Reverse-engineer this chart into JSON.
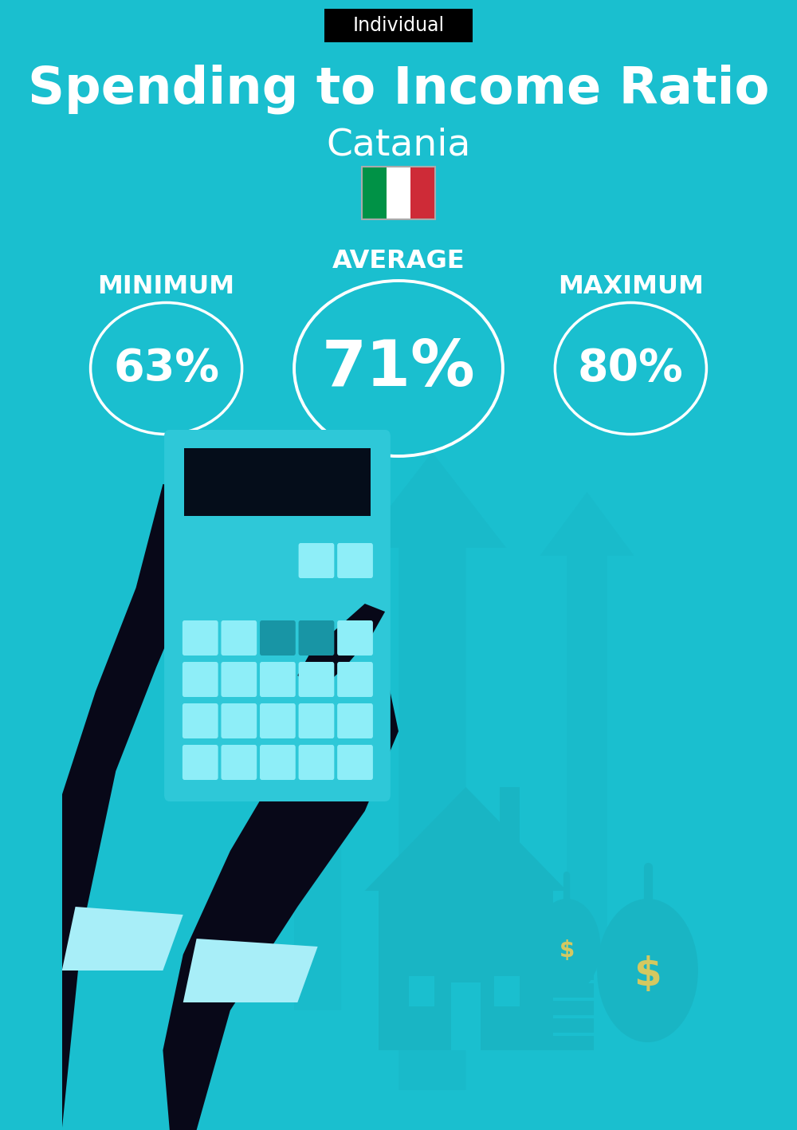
{
  "bg_color": "#1ABFCF",
  "title": "Spending to Income Ratio",
  "subtitle": "Catania",
  "label_tag": "Individual",
  "tag_bg": "#000000",
  "tag_text_color": "#ffffff",
  "title_color": "#ffffff",
  "subtitle_color": "#ffffff",
  "min_label": "MINIMUM",
  "avg_label": "AVERAGE",
  "max_label": "MAXIMUM",
  "min_value": "63%",
  "avg_value": "71%",
  "max_value": "80%",
  "label_color": "#ffffff",
  "value_color": "#ffffff",
  "circle_color": "#ffffff",
  "title_fontsize": 46,
  "subtitle_fontsize": 34,
  "tag_fontsize": 17,
  "label_fontsize": 23,
  "min_max_fontsize": 40,
  "avg_fontsize": 58,
  "italy_flag_colors": [
    "#009246",
    "#ffffff",
    "#ce2b37"
  ],
  "arrow_color": "#19B5C4",
  "house_color": "#19B5C4",
  "calc_body_color": "#2EC8D8",
  "calc_screen_color": "#050d1a",
  "calc_btn_light": "#8EEEF8",
  "calc_btn_dark": "#1895A5",
  "hand_color": "#080818",
  "cuff_color": "#A8EEF8",
  "bag_color": "#19B5C4",
  "dollar_color": "#D4C860",
  "stack_color": "#19B5C4"
}
